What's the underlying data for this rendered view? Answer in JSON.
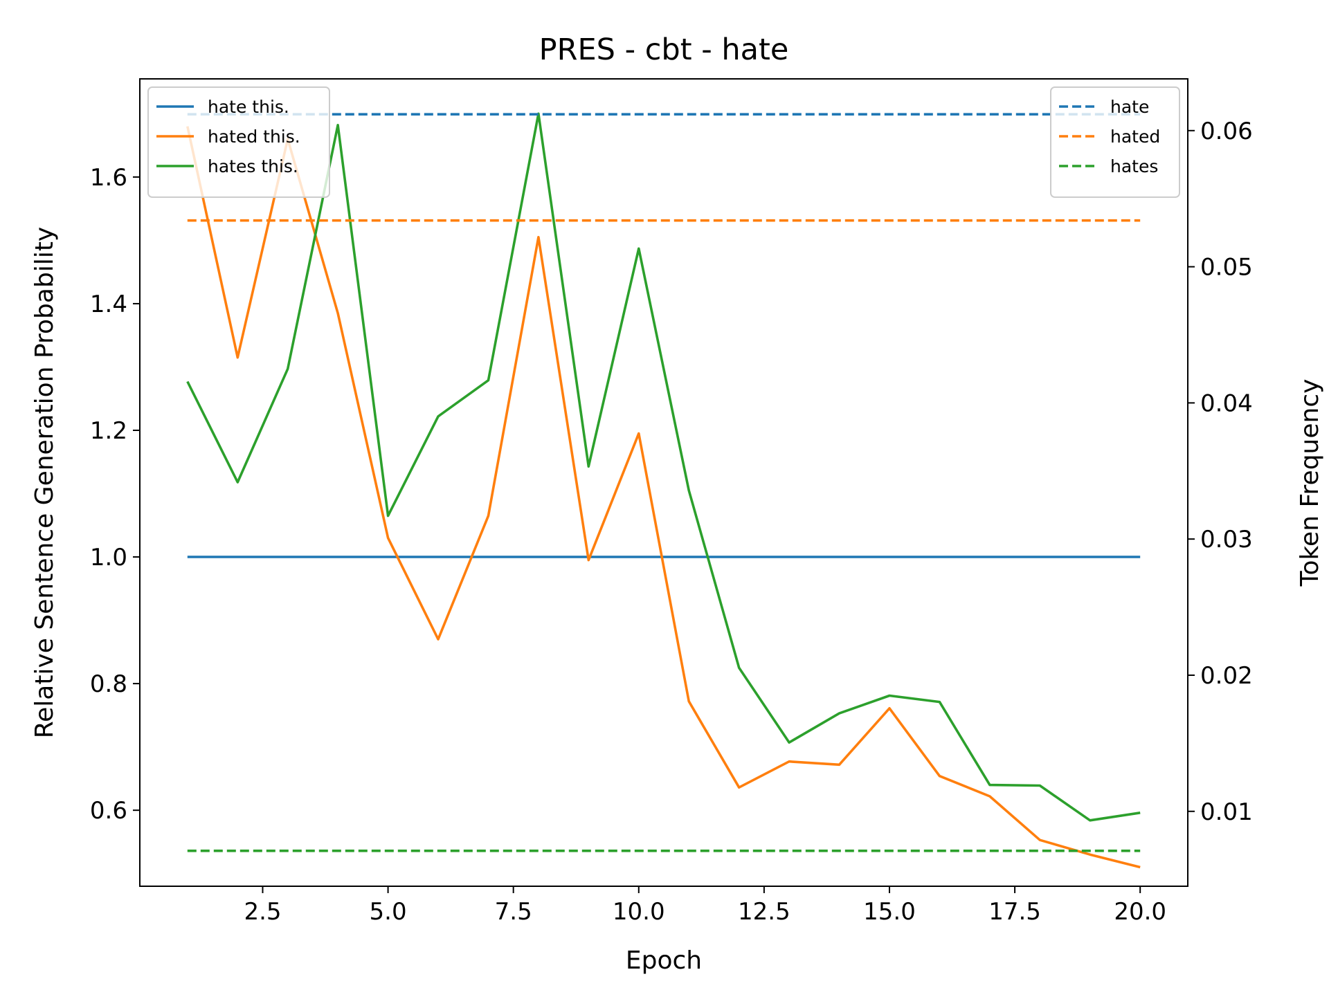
{
  "chart_data": {
    "type": "line",
    "title": "PRES - cbt - hate",
    "xlabel": "Epoch",
    "ylabel": "Relative Sentence Generation Probability",
    "y2label": "Token Frequency",
    "xlim": [
      0.05,
      20.95
    ],
    "ylim": [
      0.48,
      1.755
    ],
    "y2lim": [
      0.0045,
      0.0638
    ],
    "x_ticks": [
      2.5,
      5.0,
      7.5,
      10.0,
      12.5,
      15.0,
      17.5,
      20.0
    ],
    "x_tick_labels": [
      "2.5",
      "5.0",
      "7.5",
      "10.0",
      "12.5",
      "15.0",
      "17.5",
      "20.0"
    ],
    "y_ticks": [
      0.6,
      0.8,
      1.0,
      1.2,
      1.4,
      1.6
    ],
    "y_tick_labels": [
      "0.6",
      "0.8",
      "1.0",
      "1.2",
      "1.4",
      "1.6"
    ],
    "y2_ticks": [
      0.01,
      0.02,
      0.03,
      0.04,
      0.05,
      0.06
    ],
    "y2_tick_labels": [
      "0.01",
      "0.02",
      "0.03",
      "0.04",
      "0.05",
      "0.06"
    ],
    "grid": false,
    "x": [
      1,
      2,
      3,
      4,
      5,
      6,
      7,
      8,
      9,
      10,
      11,
      12,
      13,
      14,
      15,
      16,
      17,
      18,
      19,
      20
    ],
    "series": [
      {
        "name": "hate this.",
        "axis": "left",
        "style": "solid",
        "color": "#1f77b4",
        "values": [
          1.0,
          1.0,
          1.0,
          1.0,
          1.0,
          1.0,
          1.0,
          1.0,
          1.0,
          1.0,
          1.0,
          1.0,
          1.0,
          1.0,
          1.0,
          1.0,
          1.0,
          1.0,
          1.0,
          1.0
        ]
      },
      {
        "name": "hated this.",
        "axis": "left",
        "style": "solid",
        "color": "#ff7f0e",
        "values": [
          1.68,
          1.315,
          1.66,
          1.385,
          1.03,
          0.87,
          1.065,
          1.505,
          0.995,
          1.195,
          0.772,
          0.636,
          0.677,
          0.672,
          0.761,
          0.654,
          0.622,
          0.553,
          0.53,
          0.51
        ]
      },
      {
        "name": "hates this.",
        "axis": "left",
        "style": "solid",
        "color": "#2ca02c",
        "values": [
          1.277,
          1.118,
          1.297,
          1.682,
          1.065,
          1.222,
          1.279,
          1.7,
          1.143,
          1.487,
          1.105,
          0.825,
          0.707,
          0.753,
          0.781,
          0.771,
          0.64,
          0.639,
          0.584,
          0.596
        ]
      },
      {
        "name": "hate",
        "axis": "right",
        "style": "dashed",
        "color": "#1f77b4",
        "values": [
          0.0612,
          0.0612,
          0.0612,
          0.0612,
          0.0612,
          0.0612,
          0.0612,
          0.0612,
          0.0612,
          0.0612,
          0.0612,
          0.0612,
          0.0612,
          0.0612,
          0.0612,
          0.0612,
          0.0612,
          0.0612,
          0.0612,
          0.0612
        ]
      },
      {
        "name": "hated",
        "axis": "right",
        "style": "dashed",
        "color": "#ff7f0e",
        "values": [
          0.0534,
          0.0534,
          0.0534,
          0.0534,
          0.0534,
          0.0534,
          0.0534,
          0.0534,
          0.0534,
          0.0534,
          0.0534,
          0.0534,
          0.0534,
          0.0534,
          0.0534,
          0.0534,
          0.0534,
          0.0534,
          0.0534,
          0.0534
        ]
      },
      {
        "name": "hates",
        "axis": "right",
        "style": "dashed",
        "color": "#2ca02c",
        "values": [
          0.0071,
          0.0071,
          0.0071,
          0.0071,
          0.0071,
          0.0071,
          0.0071,
          0.0071,
          0.0071,
          0.0071,
          0.0071,
          0.0071,
          0.0071,
          0.0071,
          0.0071,
          0.0071,
          0.0071,
          0.0071,
          0.0071,
          0.0071
        ]
      }
    ],
    "legends": [
      {
        "placement": "top-left",
        "entries": [
          "hate this.",
          "hated this.",
          "hates this."
        ]
      },
      {
        "placement": "top-right",
        "entries": [
          "hate",
          "hated",
          "hates"
        ]
      }
    ]
  }
}
